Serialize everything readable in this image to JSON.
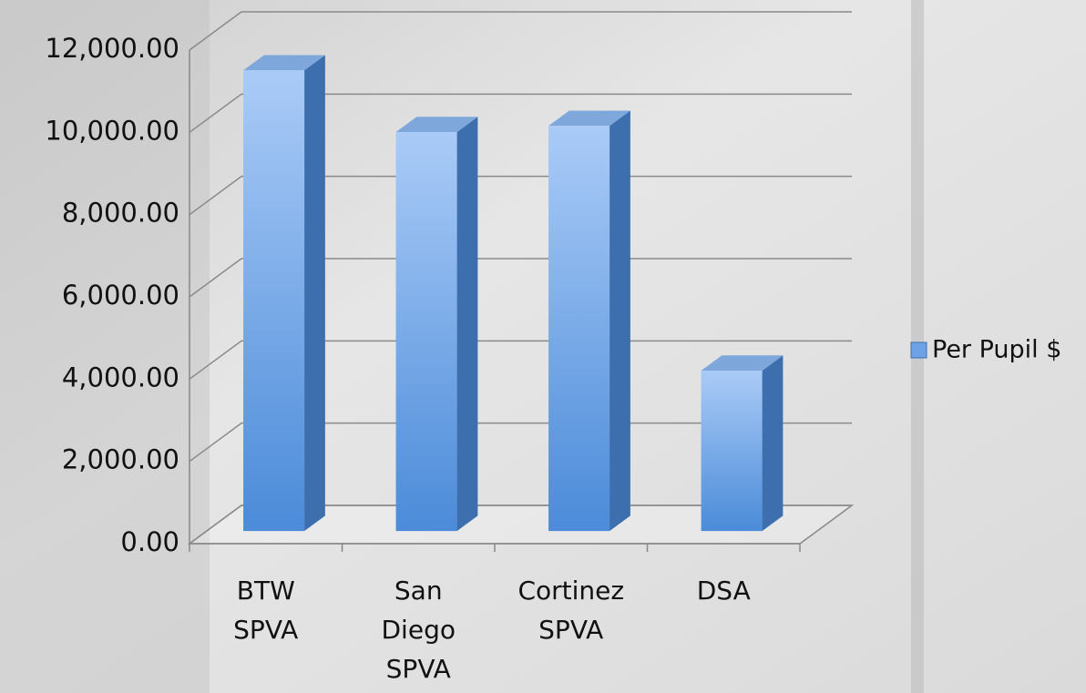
{
  "chart_data": {
    "type": "bar3d",
    "categories": [
      "BTW SPVA",
      "San Diego SPVA",
      "Cortinez SPVA",
      "DSA"
    ],
    "series": [
      {
        "name": "Per Pupil $",
        "color": "#6ea2e6",
        "values": [
          11200,
          9700,
          9850,
          3900
        ]
      }
    ],
    "ylim": [
      0,
      12000
    ],
    "yticks": [
      {
        "value": 0,
        "label": "0.00"
      },
      {
        "value": 2000,
        "label": "2,000.00"
      },
      {
        "value": 4000,
        "label": "4,000.00"
      },
      {
        "value": 6000,
        "label": "6,000.00"
      },
      {
        "value": 8000,
        "label": "8,000.00"
      },
      {
        "value": 10000,
        "label": "10,000.00"
      },
      {
        "value": 12000,
        "label": "12,000.00"
      }
    ],
    "grid": true,
    "legend": "right"
  }
}
